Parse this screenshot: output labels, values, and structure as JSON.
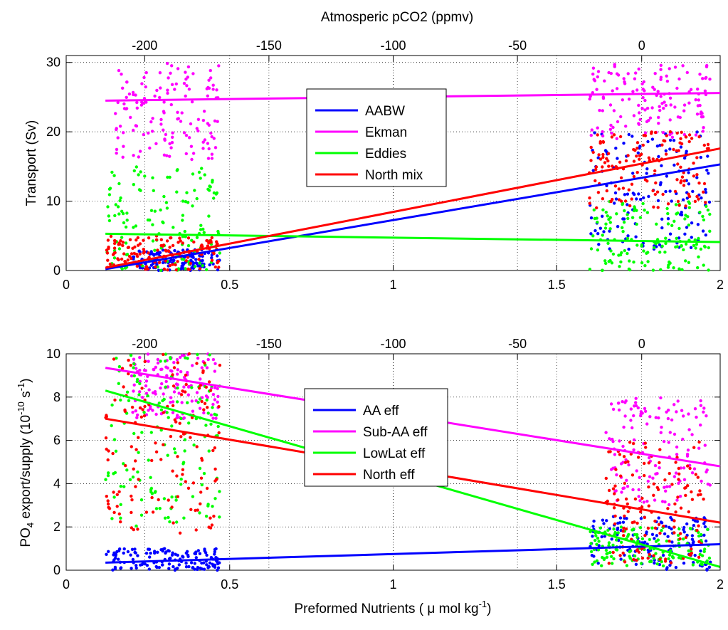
{
  "figure": {
    "top_axis_label": "Atmosperic pCO2 (ppmv)",
    "bottom_axis_label": "Preformed Nutrients ( μ mol kg",
    "bottom_axis_label_sup": "-1",
    "bottom_axis_label_end": ")"
  },
  "chart_data": [
    {
      "type": "scatter",
      "title": "",
      "xlabel": "",
      "ylabel": "Transport (Sv)",
      "xlim": [
        0,
        2
      ],
      "ylim": [
        0,
        31
      ],
      "xticks": [
        0,
        0.5,
        1,
        1.5,
        2
      ],
      "xtick_labels": [
        "0",
        "0.5",
        "1",
        "1.5",
        "2"
      ],
      "yticks": [
        0,
        10,
        20,
        30
      ],
      "ytick_labels": [
        "0",
        "10",
        "20",
        "30"
      ],
      "top_axis": {
        "label": "Atmosperic pCO2 (ppmv)",
        "ticks_x": [
          0.24,
          0.62,
          1.0,
          1.38,
          1.76
        ],
        "tick_labels": [
          "-200",
          "-150",
          "-100",
          "-50",
          "0"
        ]
      },
      "grid": true,
      "legend_position": "center",
      "clusters": [
        {
          "x_range": [
            0.12,
            0.47
          ]
        },
        {
          "x_range": [
            1.6,
            1.97
          ]
        }
      ],
      "series": [
        {
          "name": "AABW",
          "color": "#0000ff",
          "fit": [
            [
              0.12,
              0.2
            ],
            [
              2.0,
              15.3
            ]
          ],
          "scatter": [
            {
              "x": [
                0.2,
                0.47
              ],
              "y": [
                0,
                3
              ]
            },
            {
              "x": [
                1.6,
                1.97
              ],
              "y": [
                3,
                20
              ]
            }
          ]
        },
        {
          "name": "Ekman",
          "color": "#ff00ff",
          "fit": [
            [
              0.12,
              24.5
            ],
            [
              2.0,
              25.6
            ]
          ],
          "scatter": [
            {
              "x": [
                0.15,
                0.47
              ],
              "y": [
                16,
                30
              ]
            },
            {
              "x": [
                1.6,
                1.97
              ],
              "y": [
                19,
                30
              ]
            }
          ]
        },
        {
          "name": "Eddies",
          "color": "#00ff00",
          "fit": [
            [
              0.12,
              5.3
            ],
            [
              2.0,
              4.1
            ]
          ],
          "scatter": [
            {
              "x": [
                0.12,
                0.47
              ],
              "y": [
                0,
                15
              ]
            },
            {
              "x": [
                1.6,
                1.97
              ],
              "y": [
                0,
                10
              ]
            }
          ]
        },
        {
          "name": "North mix",
          "color": "#ff0000",
          "fit": [
            [
              0.12,
              0.4
            ],
            [
              2.0,
              17.6
            ]
          ],
          "scatter": [
            {
              "x": [
                0.12,
                0.47
              ],
              "y": [
                0,
                5
              ]
            },
            {
              "x": [
                1.6,
                1.97
              ],
              "y": [
                9,
                20
              ]
            }
          ]
        }
      ]
    },
    {
      "type": "scatter",
      "title": "",
      "xlabel": "Preformed Nutrients ( μ mol kg-1)",
      "ylabel": "PO4 export/supply (10-10 s-1)",
      "ylabel_parts": {
        "a": "PO",
        "a_sub": "4",
        "b": " export/supply (10",
        "b_sup": "-10",
        "c": " s",
        "c_sup": "-1",
        "d": ")"
      },
      "xlim": [
        0,
        2
      ],
      "ylim": [
        0,
        10
      ],
      "xticks": [
        0,
        0.5,
        1,
        1.5,
        2
      ],
      "xtick_labels": [
        "0",
        "0.5",
        "1",
        "1.5",
        "2"
      ],
      "yticks": [
        0,
        2,
        4,
        6,
        8,
        10
      ],
      "ytick_labels": [
        "0",
        "2",
        "4",
        "6",
        "8",
        "10"
      ],
      "top_axis": {
        "label": "",
        "ticks_x": [
          0.24,
          0.62,
          1.0,
          1.38,
          1.76
        ],
        "tick_labels": [
          "-200",
          "-150",
          "-100",
          "-50",
          "0"
        ]
      },
      "grid": true,
      "legend_position": "center",
      "series": [
        {
          "name": "AA eff",
          "color": "#0000ff",
          "fit": [
            [
              0.12,
              0.35
            ],
            [
              2.0,
              1.2
            ]
          ],
          "scatter": [
            {
              "x": [
                0.12,
                0.47
              ],
              "y": [
                0,
                1
              ]
            },
            {
              "x": [
                1.6,
                1.97
              ],
              "y": [
                0,
                2.5
              ]
            }
          ]
        },
        {
          "name": "Sub-AA eff",
          "color": "#ff00ff",
          "fit": [
            [
              0.12,
              9.35
            ],
            [
              2.0,
              4.8
            ]
          ],
          "scatter": [
            {
              "x": [
                0.2,
                0.47
              ],
              "y": [
                7,
                10
              ]
            },
            {
              "x": [
                1.65,
                1.97
              ],
              "y": [
                3,
                8
              ]
            }
          ]
        },
        {
          "name": "LowLat eff",
          "color": "#00ff00",
          "fit": [
            [
              0.12,
              8.3
            ],
            [
              2.0,
              0.15
            ]
          ],
          "scatter": [
            {
              "x": [
                0.12,
                0.47
              ],
              "y": [
                2,
                10
              ]
            },
            {
              "x": [
                1.6,
                1.97
              ],
              "y": [
                0.2,
                2
              ]
            }
          ]
        },
        {
          "name": "North eff",
          "color": "#ff0000",
          "fit": [
            [
              0.12,
              7.0
            ],
            [
              2.0,
              2.2
            ]
          ],
          "scatter": [
            {
              "x": [
                0.12,
                0.47
              ],
              "y": [
                1.6,
                10
              ]
            },
            {
              "x": [
                1.65,
                1.95
              ],
              "y": [
                0.3,
                6
              ]
            }
          ]
        }
      ]
    }
  ]
}
